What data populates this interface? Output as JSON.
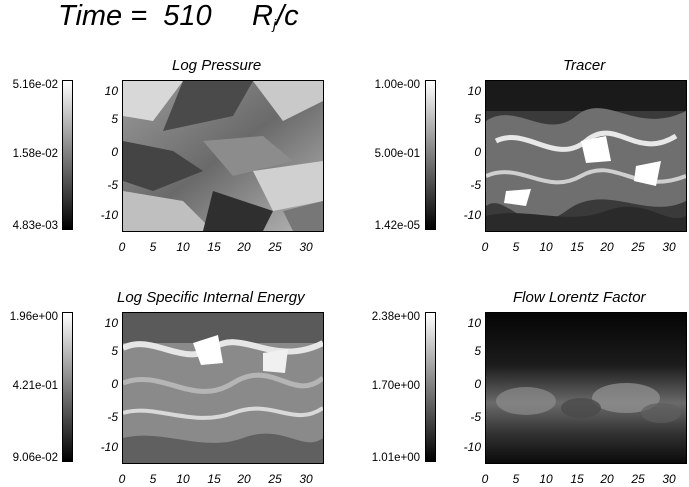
{
  "header": {
    "prefix": "Time =  510",
    "unit_main": "R",
    "unit_sub": "j",
    "unit_tail": "/c"
  },
  "axes": {
    "y_ticks": [
      "10",
      "5",
      "0",
      "-5",
      "-10"
    ],
    "x_ticks": [
      "0",
      "5",
      "10",
      "15",
      "20",
      "25",
      "30"
    ]
  },
  "panels": [
    {
      "title": "Log Pressure",
      "cb_top": "5.16e-02",
      "cb_mid": "1.58e-02",
      "cb_bot": "4.83e-03",
      "tone": "pressure"
    },
    {
      "title": "Tracer",
      "cb_top": "1.00e-00",
      "cb_mid": "5.00e-01",
      "cb_bot": "1.42e-05",
      "tone": "tracer"
    },
    {
      "title": "Log Specific Internal Energy",
      "cb_top": "1.96e+00",
      "cb_mid": "4.21e-01",
      "cb_bot": "9.06e-02",
      "tone": "energy"
    },
    {
      "title": "Flow Lorentz Factor",
      "cb_top": "2.38e+00",
      "cb_mid": "1.70e+00",
      "cb_bot": "1.01e+00",
      "tone": "lorentz"
    }
  ]
}
